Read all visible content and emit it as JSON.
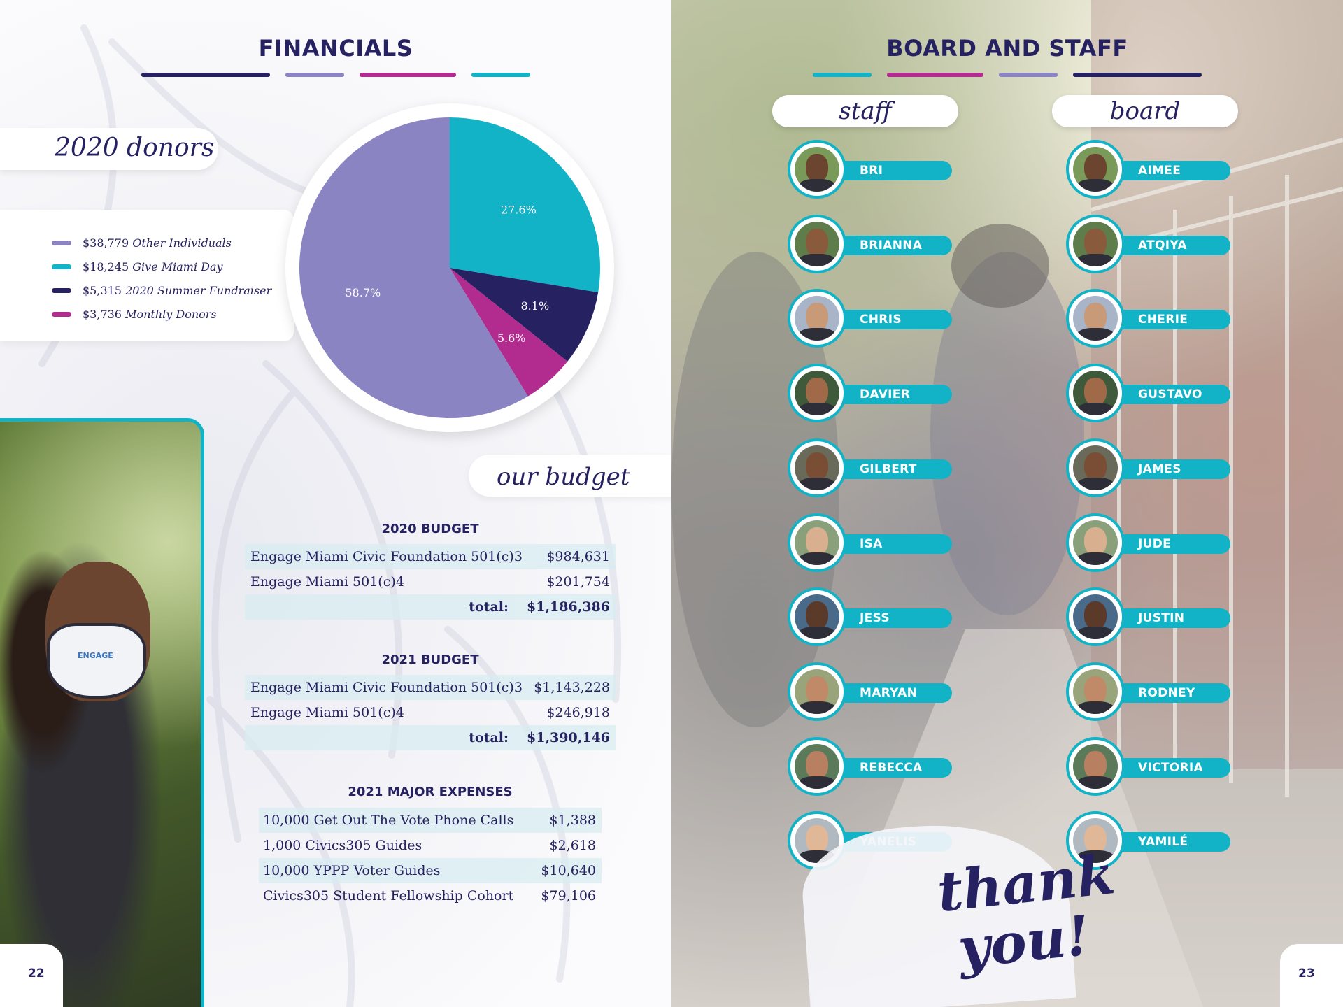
{
  "left_page": {
    "title": "FINANCIALS",
    "donors_label": "2020 donors",
    "budget_label": "our budget",
    "page_number": "22",
    "mask_text": "ENGAGE"
  },
  "donors": [
    {
      "amount": "$38,779",
      "label": "Other Individuals",
      "color": "#8b84c2"
    },
    {
      "amount": "$18,245",
      "label": "Give Miami Day",
      "color": "#12b3c6"
    },
    {
      "amount": "$5,315",
      "label": "2020 Summer Fundraiser",
      "color": "#262262"
    },
    {
      "amount": "$3,736",
      "label": "Monthly Donors",
      "color": "#b22b8f"
    }
  ],
  "chart_data": {
    "type": "pie",
    "labels": [
      "Other Individuals",
      "Give Miami Day",
      "2020 Summer Fundraiser",
      "Monthly Donors"
    ],
    "values": [
      58.7,
      27.6,
      8.1,
      5.6
    ],
    "value_labels": [
      "58.7%",
      "27.6%",
      "8.1%",
      "5.6%"
    ],
    "colors": [
      "#8b84c2",
      "#12b3c6",
      "#262262",
      "#b22b8f"
    ],
    "legend_placement": "left"
  },
  "budget_2020": {
    "title": "2020 BUDGET",
    "rows": [
      {
        "label": "Engage Miami Civic Foundation 501(c)3",
        "value": "$984,631"
      },
      {
        "label": "Engage Miami 501(c)4",
        "value": "$201,754"
      }
    ],
    "total_label": "total:",
    "total_value": "$1,186,386"
  },
  "budget_2021": {
    "title": "2021 BUDGET",
    "rows": [
      {
        "label": "Engage Miami Civic Foundation 501(c)3",
        "value": "$1,143,228"
      },
      {
        "label": "Engage Miami 501(c)4",
        "value": "$246,918"
      }
    ],
    "total_label": "total:",
    "total_value": "$1,390,146"
  },
  "expenses_2021": {
    "title": "2021 MAJOR EXPENSES",
    "rows": [
      {
        "label": "10,000 Get Out The Vote Phone Calls",
        "value": "$1,388"
      },
      {
        "label": "1,000 Civics305 Guides",
        "value": "$2,618"
      },
      {
        "label": "10,000 YPPP Voter Guides",
        "value": "$10,640"
      },
      {
        "label": "Civics305 Student Fellowship Cohort",
        "value": "$79,106"
      }
    ]
  },
  "right_page": {
    "title": "BOARD AND STAFF",
    "staff_label": "staff",
    "board_label": "board",
    "thank_line1": "thank",
    "thank_line2": "you!",
    "page_number": "23"
  },
  "staff": [
    "BRI",
    "BRIANNA",
    "CHRIS",
    "DAVIER",
    "GILBERT",
    "ISA",
    "JESS",
    "MARYAN",
    "REBECCA",
    "YANELIS"
  ],
  "board": [
    "AIMEE",
    "ATQIYA",
    "CHERIE",
    "GUSTAVO",
    "JAMES",
    "JUDE",
    "JUSTIN",
    "RODNEY",
    "VICTORIA",
    "YAMILÉ"
  ],
  "colors": {
    "navy": "#262262",
    "teal": "#12b3c6",
    "lavender": "#8b84c2",
    "magenta": "#b22b8f"
  }
}
